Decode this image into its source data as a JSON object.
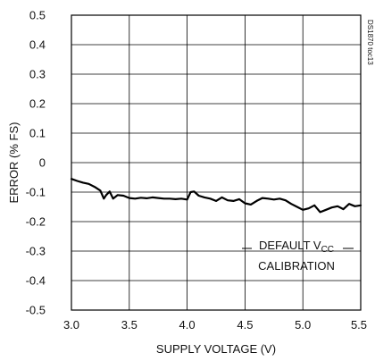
{
  "chart_data": {
    "type": "line",
    "title": "",
    "xlabel": "SUPPLY VOLTAGE (V)",
    "ylabel": "ERROR (% FS)",
    "xlim": [
      3.0,
      5.5
    ],
    "ylim": [
      -0.5,
      0.5
    ],
    "xticks": [
      3.0,
      3.5,
      4.0,
      4.5,
      5.0,
      5.5
    ],
    "xtick_labels": [
      "3.0",
      "3.5",
      "4.0",
      "4.5",
      "5.0",
      "5.5"
    ],
    "yticks": [
      0.5,
      0.4,
      0.3,
      0.2,
      0.1,
      0,
      -0.1,
      -0.2,
      -0.3,
      -0.4,
      -0.5
    ],
    "ytick_labels": [
      "0.5",
      "0.4",
      "0.3",
      "0.2",
      "0.1",
      "0",
      "-0.1",
      "-0.2",
      "-0.3",
      "-0.4",
      "-0.5"
    ],
    "grid": true,
    "series": [
      {
        "color": "#000000",
        "x": [
          3.0,
          3.05,
          3.1,
          3.15,
          3.2,
          3.25,
          3.28,
          3.3,
          3.33,
          3.36,
          3.4,
          3.45,
          3.5,
          3.55,
          3.6,
          3.65,
          3.7,
          3.75,
          3.8,
          3.85,
          3.9,
          3.95,
          4.0,
          4.03,
          4.06,
          4.1,
          4.15,
          4.2,
          4.25,
          4.3,
          4.35,
          4.4,
          4.45,
          4.5,
          4.55,
          4.6,
          4.65,
          4.7,
          4.75,
          4.8,
          4.85,
          4.9,
          4.95,
          5.0,
          5.05,
          5.1,
          5.15,
          5.2,
          5.25,
          5.3,
          5.35,
          5.4,
          5.45,
          5.5
        ],
        "y": [
          -0.055,
          -0.062,
          -0.068,
          -0.072,
          -0.082,
          -0.095,
          -0.122,
          -0.11,
          -0.098,
          -0.122,
          -0.11,
          -0.112,
          -0.12,
          -0.122,
          -0.119,
          -0.121,
          -0.118,
          -0.12,
          -0.122,
          -0.122,
          -0.124,
          -0.122,
          -0.125,
          -0.1,
          -0.098,
          -0.112,
          -0.118,
          -0.122,
          -0.13,
          -0.118,
          -0.128,
          -0.13,
          -0.124,
          -0.138,
          -0.142,
          -0.13,
          -0.12,
          -0.122,
          -0.125,
          -0.122,
          -0.128,
          -0.14,
          -0.15,
          -0.16,
          -0.155,
          -0.145,
          -0.168,
          -0.16,
          -0.152,
          -0.148,
          -0.158,
          -0.14,
          -0.148,
          -0.145
        ]
      }
    ],
    "annotation": {
      "line1": "DEFAULT V",
      "line1_sub": "CC",
      "line2": "CALIBRATION"
    },
    "side_id": "DS1870 toc13"
  }
}
